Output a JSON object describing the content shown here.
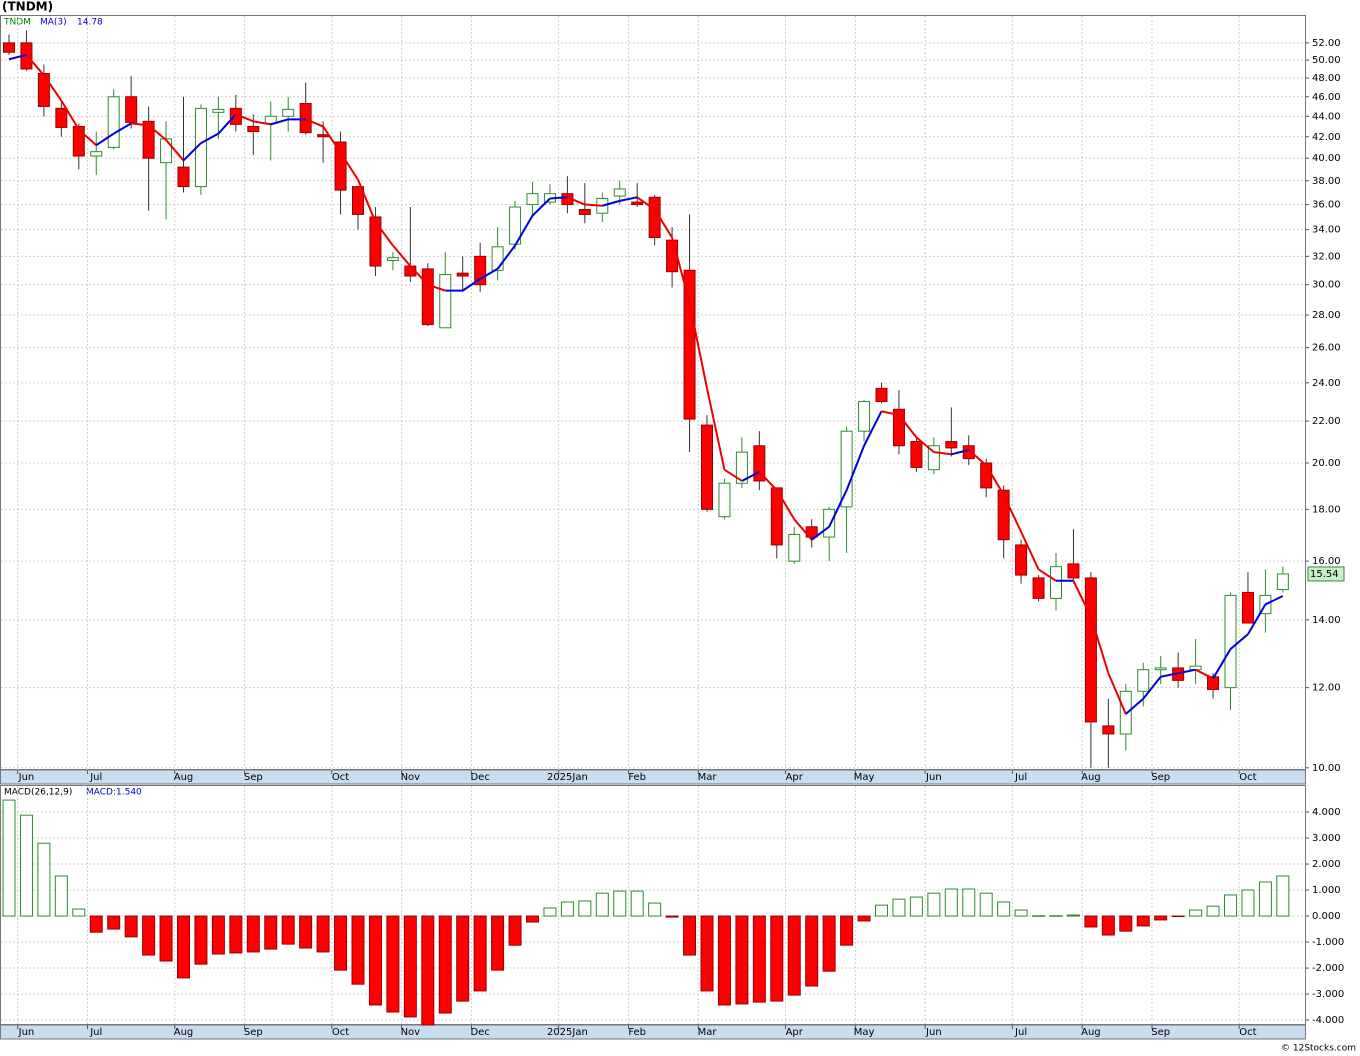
{
  "chart_data": [
    {
      "type": "candlestick",
      "title": "(TNDM)",
      "symbol": "TNDM",
      "categories": [
        null,
        "Jun",
        null,
        null,
        null,
        "Jul",
        null,
        null,
        null,
        null,
        "Aug",
        null,
        null,
        null,
        "Sep",
        null,
        null,
        null,
        null,
        "Oct",
        null,
        null,
        null,
        "Nov",
        null,
        null,
        null,
        "Dec",
        null,
        null,
        null,
        null,
        "2025Jan",
        null,
        null,
        null,
        "Feb",
        null,
        null,
        null,
        "Mar",
        null,
        null,
        null,
        null,
        "Apr",
        null,
        null,
        null,
        "May",
        null,
        null,
        null,
        "Jun",
        null,
        null,
        null,
        null,
        "Jul",
        null,
        null,
        null,
        "Aug",
        null,
        null,
        null,
        "Sep",
        null,
        null,
        null,
        null,
        "Oct",
        null,
        null
      ],
      "open": [
        52.0,
        52.0,
        48.5,
        44.8,
        43.0,
        40.2,
        41.0,
        46.0,
        43.5,
        39.6,
        39.2,
        37.5,
        44.4,
        44.8,
        43.0,
        43.3,
        44.0,
        45.3,
        42.2,
        41.5,
        37.5,
        35.0,
        31.7,
        31.3,
        31.1,
        27.2,
        30.8,
        32.0,
        31.0,
        32.9,
        36.0,
        36.2,
        36.9,
        35.6,
        35.3,
        36.7,
        36.2,
        36.6,
        33.2,
        31.0,
        21.8,
        17.7,
        19.1,
        20.8,
        18.9,
        16.0,
        17.3,
        16.9,
        18.1,
        21.5,
        23.7,
        22.6,
        21.0,
        19.7,
        21.0,
        20.8,
        20.0,
        18.8,
        16.6,
        15.4,
        14.7,
        15.9,
        15.4,
        11.0,
        10.8,
        11.9,
        12.5,
        12.55,
        12.5,
        12.3,
        12.0,
        14.9,
        14.2,
        15.0
      ],
      "high": [
        53.0,
        53.5,
        49.5,
        45.5,
        43.3,
        42.5,
        46.8,
        48.2,
        45.0,
        43.5,
        46.0,
        45.2,
        46.0,
        46.2,
        44.2,
        45.5,
        46.0,
        47.5,
        43.5,
        42.5,
        37.5,
        35.8,
        32.3,
        35.8,
        31.5,
        32.3,
        32.0,
        33.0,
        34.2,
        36.3,
        37.9,
        37.7,
        38.4,
        37.8,
        37.0,
        38.0,
        37.8,
        36.8,
        34.2,
        35.2,
        22.3,
        19.3,
        21.2,
        21.5,
        18.9,
        17.3,
        17.6,
        18.1,
        21.7,
        23.1,
        24.0,
        23.6,
        21.2,
        21.2,
        22.7,
        21.3,
        20.2,
        19.0,
        16.8,
        15.5,
        16.3,
        17.2,
        15.6,
        11.7,
        12.1,
        12.7,
        12.9,
        13.0,
        13.4,
        12.4,
        14.9,
        15.6,
        15.7,
        15.8
      ],
      "low": [
        50.6,
        48.8,
        44.0,
        42.0,
        39.0,
        38.5,
        40.8,
        42.8,
        35.5,
        34.8,
        37.0,
        36.8,
        41.8,
        42.5,
        40.3,
        39.8,
        42.5,
        42.2,
        39.6,
        35.2,
        34.0,
        30.6,
        31.0,
        30.2,
        27.3,
        27.2,
        29.5,
        29.5,
        30.3,
        32.5,
        35.1,
        36.0,
        35.3,
        34.5,
        34.6,
        36.0,
        35.8,
        32.8,
        29.8,
        20.5,
        17.9,
        17.6,
        18.9,
        18.8,
        16.1,
        15.9,
        16.5,
        16.0,
        16.3,
        21.0,
        22.9,
        20.4,
        19.6,
        19.5,
        20.3,
        19.9,
        18.5,
        16.1,
        15.2,
        14.6,
        14.3,
        15.2,
        10.0,
        10.0,
        10.4,
        11.5,
        12.1,
        12.0,
        12.1,
        11.7,
        11.4,
        13.9,
        13.6,
        14.9
      ],
      "close": [
        50.9,
        49.0,
        45.0,
        42.9,
        40.2,
        40.6,
        46.0,
        43.4,
        40.0,
        41.8,
        37.5,
        44.8,
        44.7,
        43.2,
        42.5,
        44.0,
        44.7,
        42.4,
        42.0,
        37.2,
        35.2,
        31.3,
        31.9,
        30.6,
        27.4,
        30.7,
        30.6,
        30.0,
        32.7,
        35.8,
        36.9,
        36.9,
        36.0,
        35.2,
        36.5,
        37.3,
        36.0,
        33.4,
        30.9,
        22.1,
        18.0,
        19.1,
        20.5,
        19.2,
        16.6,
        17.0,
        16.9,
        18.0,
        21.5,
        23.0,
        23.0,
        20.8,
        19.8,
        20.8,
        20.7,
        20.2,
        18.9,
        16.8,
        15.5,
        14.7,
        15.8,
        15.4,
        11.1,
        10.8,
        11.9,
        12.5,
        12.55,
        12.2,
        12.6,
        11.95,
        14.8,
        13.9,
        14.8,
        15.54
      ],
      "up_color": "#2e8b2e",
      "down_color": "#ff0000",
      "ma": {
        "name": "MA(3)",
        "value_label": "14.78",
        "rise_color": "#0000dd",
        "fall_color": "#ee0000",
        "values": [
          50.1,
          50.6,
          48.3,
          45.6,
          42.7,
          41.2,
          42.3,
          43.3,
          43.1,
          41.7,
          39.8,
          41.4,
          42.3,
          44.2,
          43.5,
          43.2,
          43.7,
          43.7,
          43.0,
          40.5,
          38.1,
          34.6,
          32.8,
          31.3,
          30.0,
          29.6,
          29.6,
          30.4,
          31.1,
          32.8,
          35.1,
          36.5,
          36.6,
          36.0,
          35.9,
          36.3,
          36.6,
          35.6,
          33.4,
          28.8,
          23.7,
          19.7,
          19.2,
          19.6,
          18.8,
          17.6,
          16.8,
          17.3,
          18.8,
          20.8,
          22.5,
          22.3,
          21.2,
          20.5,
          20.4,
          20.6,
          19.9,
          18.6,
          17.1,
          15.7,
          15.3,
          15.3,
          14.1,
          12.4,
          11.3,
          11.7,
          12.3,
          12.4,
          12.5,
          12.25,
          13.1,
          13.55,
          14.5,
          14.78
        ]
      },
      "log_scale": true,
      "grid": true,
      "ylim": [
        9.95,
        55.4
      ],
      "yticks": [
        {
          "value": 10,
          "label": "10.00"
        },
        {
          "value": 12,
          "label": "12.00"
        },
        {
          "value": 14,
          "label": "14.00"
        },
        {
          "value": 16,
          "label": "16.00"
        },
        {
          "value": 18,
          "label": "18.00"
        },
        {
          "value": 20,
          "label": "20.00"
        },
        {
          "value": 22,
          "label": "22.00"
        },
        {
          "value": 24,
          "label": "24.00"
        },
        {
          "value": 26,
          "label": "26.00"
        },
        {
          "value": 28,
          "label": "28.00"
        },
        {
          "value": 30,
          "label": "30.00"
        },
        {
          "value": 32,
          "label": "32.00"
        },
        {
          "value": 34,
          "label": "34.00"
        },
        {
          "value": 36,
          "label": "36.00"
        },
        {
          "value": 38,
          "label": "38.00"
        },
        {
          "value": 40,
          "label": "40.00"
        },
        {
          "value": 42,
          "label": "42.00"
        },
        {
          "value": 44,
          "label": "44.00"
        },
        {
          "value": 46,
          "label": "46.00"
        },
        {
          "value": 48,
          "label": "48.00"
        },
        {
          "value": 50,
          "label": "50.00"
        },
        {
          "value": 52,
          "label": "52.00"
        }
      ]
    },
    {
      "type": "bar",
      "name": "MACD(26,12,9)",
      "value_label": "MACD:1.540",
      "categories": [
        null,
        "Jun",
        null,
        null,
        null,
        "Jul",
        null,
        null,
        null,
        null,
        "Aug",
        null,
        null,
        null,
        "Sep",
        null,
        null,
        null,
        null,
        "Oct",
        null,
        null,
        null,
        "Nov",
        null,
        null,
        null,
        "Dec",
        null,
        null,
        null,
        null,
        "2025Jan",
        null,
        null,
        null,
        "Feb",
        null,
        null,
        null,
        "Mar",
        null,
        null,
        null,
        null,
        "Apr",
        null,
        null,
        null,
        "May",
        null,
        null,
        null,
        "Jun",
        null,
        null,
        null,
        null,
        "Jul",
        null,
        null,
        null,
        "Aug",
        null,
        null,
        null,
        "Sep",
        null,
        null,
        null,
        null,
        "Oct",
        null,
        null
      ],
      "values": [
        4.46,
        3.88,
        2.8,
        1.54,
        0.27,
        -0.62,
        -0.5,
        -0.8,
        -1.5,
        -1.73,
        -2.38,
        -1.85,
        -1.46,
        -1.42,
        -1.38,
        -1.27,
        -1.08,
        -1.23,
        -1.38,
        -2.08,
        -2.62,
        -3.42,
        -3.69,
        -3.88,
        -4.19,
        -3.73,
        -3.27,
        -2.88,
        -2.08,
        -1.12,
        -0.23,
        0.31,
        0.54,
        0.58,
        0.88,
        0.96,
        0.96,
        0.5,
        -0.04,
        -1.5,
        -2.88,
        -3.42,
        -3.38,
        -3.31,
        -3.27,
        -3.04,
        -2.69,
        -2.12,
        -1.12,
        -0.19,
        0.42,
        0.65,
        0.73,
        0.88,
        1.04,
        1.04,
        0.88,
        0.54,
        0.23,
        0.01,
        0.01,
        0.04,
        -0.42,
        -0.73,
        -0.58,
        -0.38,
        -0.15,
        -0.02,
        0.23,
        0.38,
        0.81,
        1.0,
        1.31,
        1.54
      ],
      "up_color": "#2e8b2e",
      "down_color": "#ff0000",
      "grid": true,
      "ylim": [
        -4.19,
        5.04
      ],
      "yticks": [
        {
          "value": -4,
          "label": "-4.000"
        },
        {
          "value": -3,
          "label": "-3.000"
        },
        {
          "value": -2,
          "label": "-2.000"
        },
        {
          "value": -1,
          "label": "-1.000"
        },
        {
          "value": 0,
          "label": "0.000"
        },
        {
          "value": 1,
          "label": "1.000"
        },
        {
          "value": 2,
          "label": "2.000"
        },
        {
          "value": 3,
          "label": "3.000"
        },
        {
          "value": 4,
          "label": "4.000"
        }
      ]
    }
  ],
  "footer": "© 12Stocks.com"
}
